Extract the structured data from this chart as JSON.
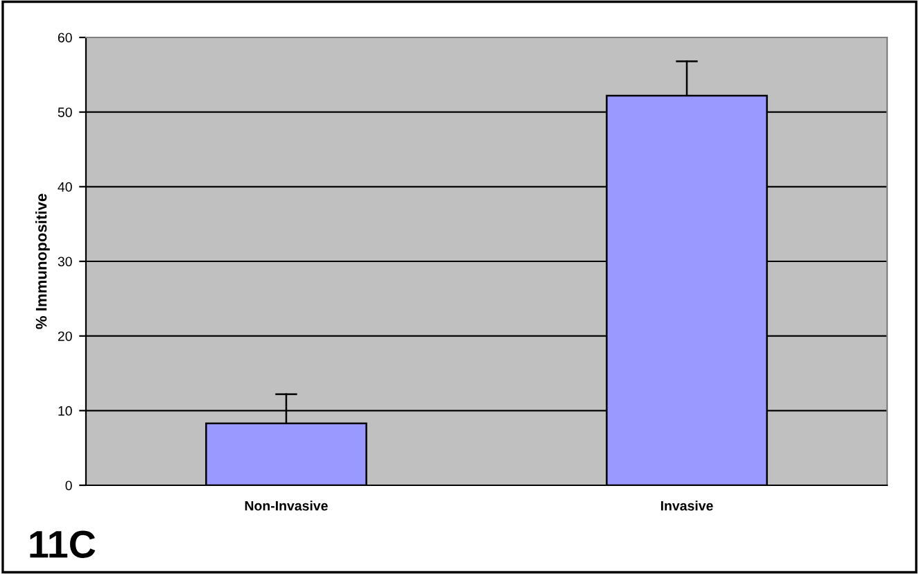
{
  "chart_data": {
    "type": "bar",
    "ylabel": "% Immunopositive",
    "categories": [
      "Non-Invasive",
      "Invasive"
    ],
    "values": [
      8.3,
      52.2
    ],
    "errors": [
      [
        8.3,
        12.2
      ],
      [
        52.2,
        56.8
      ]
    ],
    "color": "#9999ff",
    "ylim": [
      0,
      60
    ],
    "yticks": [
      0,
      10,
      20,
      30,
      40,
      50,
      60
    ],
    "grid": "y",
    "annotations": [
      "11C"
    ]
  }
}
